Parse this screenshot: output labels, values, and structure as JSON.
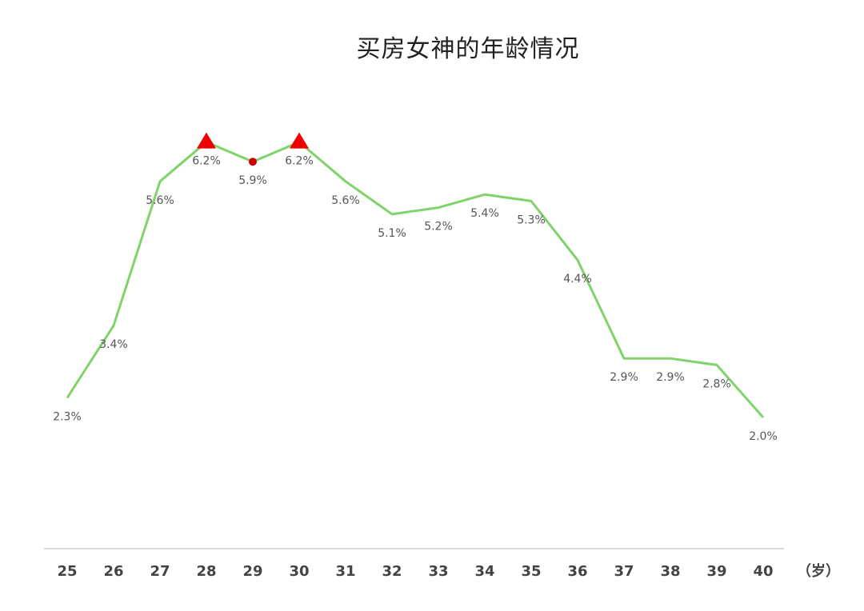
{
  "chart_data": {
    "type": "line",
    "title": "买房女神的年龄情况",
    "x_unit_label": "（岁）",
    "categories": [
      "25",
      "26",
      "27",
      "28",
      "29",
      "30",
      "31",
      "32",
      "33",
      "34",
      "35",
      "36",
      "37",
      "38",
      "39",
      "40"
    ],
    "values": [
      2.3,
      3.4,
      5.6,
      6.2,
      5.9,
      6.2,
      5.6,
      5.1,
      5.2,
      5.4,
      5.3,
      4.4,
      2.9,
      2.9,
      2.8,
      2.0
    ],
    "value_labels": [
      "2.3%",
      "3.4%",
      "5.6%",
      "6.2%",
      "5.9%",
      "6.2%",
      "5.6%",
      "5.1%",
      "5.2%",
      "5.4%",
      "5.3%",
      "4.4%",
      "2.9%",
      "2.9%",
      "2.8%",
      "2.0%"
    ],
    "markers": [
      {
        "index": 3,
        "shape": "triangle",
        "color": "#ee0000"
      },
      {
        "index": 4,
        "shape": "circle",
        "color": "#cc0000"
      },
      {
        "index": 5,
        "shape": "triangle",
        "color": "#ee0000"
      }
    ],
    "line_color": "#7fd36a",
    "axis_color": "#dddddd",
    "grid": false,
    "ylim": [
      0,
      7
    ]
  }
}
